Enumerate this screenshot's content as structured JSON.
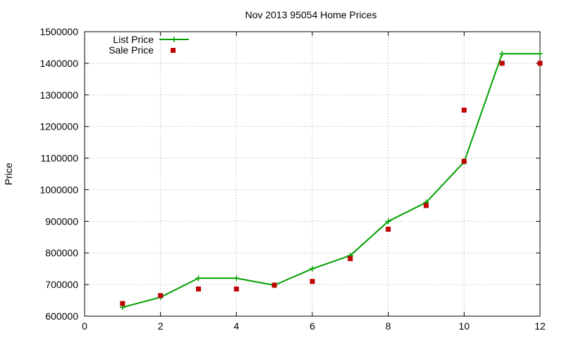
{
  "chart_data": {
    "type": "line",
    "title": "Nov 2013 95054 Home Prices",
    "xlabel": "",
    "ylabel": "Price",
    "xlim": [
      0,
      12
    ],
    "ylim": [
      600000,
      1500000
    ],
    "grid": true,
    "legend_position": "top-left",
    "x_ticks": [
      "0",
      "2",
      "4",
      "6",
      "8",
      "10",
      "12"
    ],
    "y_ticks": [
      "600000",
      "700000",
      "800000",
      "900000",
      "1000000",
      "1100000",
      "1200000",
      "1300000",
      "1400000",
      "1500000"
    ],
    "series": [
      {
        "name": "List Price",
        "style": "line-with-plus-markers",
        "color": "#00a000",
        "x": [
          1,
          2,
          3,
          4,
          5,
          6,
          7,
          8,
          9,
          10,
          11,
          12
        ],
        "values": [
          628000,
          660000,
          720000,
          720000,
          698000,
          750000,
          792000,
          900000,
          960000,
          1088000,
          1430000,
          1430000
        ]
      },
      {
        "name": "Sale Price",
        "style": "square-markers",
        "color": "#c00000",
        "x": [
          1,
          2,
          3,
          4,
          5,
          6,
          7,
          8,
          9,
          10,
          10,
          11,
          12
        ],
        "values": [
          640000,
          665000,
          686000,
          686000,
          698000,
          710000,
          782000,
          875000,
          950000,
          1090000,
          1252000,
          1400000,
          1400000
        ]
      }
    ]
  }
}
